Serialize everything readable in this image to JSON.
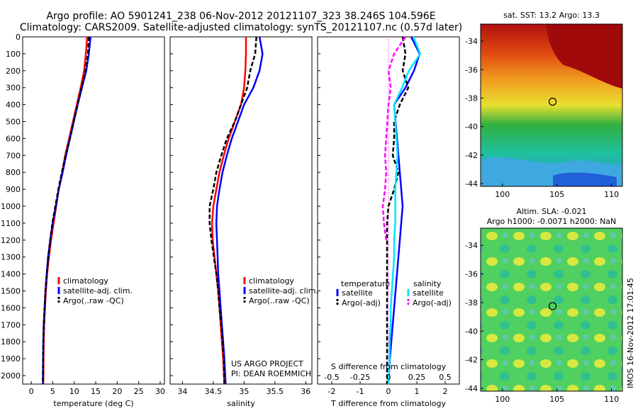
{
  "title_line1": "Argo profile: AO 5901241_238 06-Nov-2012 20121107_323 38.246S 104.596E",
  "title_line2": "Climatology: CARS2009. Satellite-adjusted climatology: synTS_20121107.nc (0.57d later)",
  "project_note_line1": "US ARGO PROJECT",
  "project_note_line2": "PI: DEAN ROEMMICH",
  "side_stamp": "IMOS 16-Nov-2012 17:01:45",
  "colors": {
    "climatology": "#ff0000",
    "satellite": "#0000ff",
    "argo": "#000000",
    "satellite_salinity": "#00e5ff",
    "argo_salinity": "#ff00ff"
  },
  "chart_data": [
    {
      "type": "line",
      "panel": "temperature",
      "xlabel": "temperature (deg C)",
      "ylabel": "",
      "xlim": [
        -2,
        31
      ],
      "ylim": [
        0,
        2050
      ],
      "y_reversed": true,
      "xticks": [
        0,
        5,
        10,
        15,
        20,
        25,
        30
      ],
      "yticks": [
        0,
        100,
        200,
        300,
        400,
        500,
        600,
        700,
        800,
        900,
        1000,
        1100,
        1200,
        1300,
        1400,
        1500,
        1600,
        1700,
        1800,
        1900,
        2000
      ],
      "legend": [
        "climatology",
        "satellite-adj. clim.",
        "Argo(..raw -QC)"
      ],
      "legend_position": "lower-right",
      "series": [
        {
          "name": "climatology",
          "style": "solid",
          "x": [
            13.0,
            12.7,
            12.3,
            11.5,
            10.6,
            9.7,
            8.8,
            7.9,
            7.2,
            6.4,
            5.8,
            5.2,
            4.6,
            4.1,
            3.7,
            3.4,
            3.2,
            3.0,
            2.9,
            2.85,
            2.8
          ],
          "y": [
            0,
            100,
            200,
            300,
            400,
            500,
            600,
            700,
            800,
            900,
            1000,
            1100,
            1200,
            1300,
            1400,
            1500,
            1600,
            1700,
            1800,
            1900,
            2050
          ]
        },
        {
          "name": "satellite-adj. clim.",
          "style": "solid",
          "x": [
            13.8,
            13.4,
            12.8,
            11.8,
            10.8,
            9.9,
            9.0,
            8.1,
            7.3,
            6.4,
            5.7,
            5.0,
            4.4,
            3.9,
            3.6,
            3.3,
            3.1,
            2.9,
            2.8,
            2.75,
            2.7
          ],
          "y": [
            0,
            100,
            200,
            300,
            400,
            500,
            600,
            700,
            800,
            900,
            1000,
            1100,
            1200,
            1300,
            1400,
            1500,
            1600,
            1700,
            1800,
            1900,
            2050
          ]
        },
        {
          "name": "Argo(..raw -QC)",
          "style": "dashed",
          "x": [
            13.4,
            13.2,
            12.6,
            11.7,
            10.8,
            9.9,
            9.0,
            8.0,
            7.1,
            6.3,
            5.6,
            4.9,
            4.4,
            4.0,
            3.6,
            3.3,
            3.1,
            2.9,
            2.8,
            2.75,
            2.7
          ],
          "y": [
            0,
            100,
            200,
            300,
            400,
            500,
            600,
            700,
            800,
            900,
            1000,
            1100,
            1200,
            1300,
            1400,
            1500,
            1600,
            1700,
            1800,
            1900,
            2050
          ]
        }
      ]
    },
    {
      "type": "line",
      "panel": "salinity",
      "xlabel": "salinity",
      "ylabel": "",
      "xlim": [
        33.8,
        36.1
      ],
      "ylim": [
        0,
        2050
      ],
      "y_reversed": true,
      "xticks": [
        34,
        34.5,
        35,
        35.5,
        36
      ],
      "legend": [
        "climatology",
        "satellite-adj. clim.",
        "Argo(..raw -QC)"
      ],
      "legend_position": "lower-right",
      "series": [
        {
          "name": "climatology",
          "style": "solid",
          "x": [
            35.03,
            35.03,
            35.02,
            35.0,
            34.95,
            34.85,
            34.75,
            34.67,
            34.6,
            34.55,
            34.5,
            34.48,
            34.49,
            34.52,
            34.55,
            34.58,
            34.6,
            34.62,
            34.64,
            34.66,
            34.68
          ],
          "y": [
            0,
            100,
            200,
            300,
            400,
            500,
            600,
            700,
            800,
            900,
            1000,
            1100,
            1200,
            1300,
            1400,
            1500,
            1600,
            1700,
            1800,
            1900,
            2050
          ]
        },
        {
          "name": "satellite-adj. clim.",
          "style": "solid",
          "x": [
            35.25,
            35.3,
            35.25,
            35.15,
            35.0,
            34.9,
            34.8,
            34.72,
            34.65,
            34.6,
            34.56,
            34.55,
            34.56,
            34.57,
            34.58,
            34.6,
            34.62,
            34.64,
            34.66,
            34.68,
            34.7
          ],
          "y": [
            0,
            100,
            200,
            300,
            400,
            500,
            600,
            700,
            800,
            900,
            1000,
            1100,
            1200,
            1300,
            1400,
            1500,
            1600,
            1700,
            1800,
            1900,
            2050
          ]
        },
        {
          "name": "Argo(..raw -QC)",
          "style": "dashed",
          "x": [
            35.2,
            35.18,
            35.1,
            35.05,
            34.95,
            34.85,
            34.72,
            34.63,
            34.55,
            34.5,
            34.44,
            34.44,
            34.47,
            34.51,
            34.55,
            34.58,
            34.6,
            34.63,
            34.65,
            34.67,
            34.68
          ],
          "y": [
            0,
            100,
            200,
            300,
            400,
            500,
            600,
            700,
            800,
            900,
            1000,
            1100,
            1200,
            1300,
            1400,
            1500,
            1600,
            1700,
            1800,
            1900,
            2050
          ]
        }
      ]
    },
    {
      "type": "line",
      "panel": "difference",
      "xlabel": "T difference from climatology",
      "x2label": "S difference from climatology",
      "ylabel": "",
      "xlim": [
        -2.5,
        2.5
      ],
      "x2lim": [
        -0.625,
        0.625
      ],
      "ylim": [
        0,
        2050
      ],
      "y_reversed": true,
      "xticks": [
        -2,
        -1,
        0,
        1,
        2
      ],
      "x2ticks": [
        -0.5,
        -0.25,
        0,
        0.25,
        0.5
      ],
      "x2ticklabels": [
        "-0.5",
        "-0.25",
        "0",
        "0.25",
        "0.5"
      ],
      "legend_headers": [
        "temperature",
        "salinity"
      ],
      "legend": [
        "satellite",
        "Argo(-adj)",
        "satellite",
        "Argo(-adj)"
      ],
      "legend_position": "lower",
      "series": [
        {
          "name": "satellite",
          "group": "temperature",
          "style": "solid",
          "x": [
            0.8,
            1.1,
            0.9,
            0.6,
            0.2,
            0.25,
            0.3,
            0.35,
            0.4,
            0.45,
            0.5,
            0.45,
            0.4,
            0.35,
            0.3,
            0.25,
            0.2,
            0.15,
            0.1,
            0.05,
            0.0
          ],
          "y": [
            0,
            100,
            200,
            300,
            400,
            500,
            600,
            700,
            800,
            900,
            1000,
            1100,
            1200,
            1300,
            1400,
            1500,
            1600,
            1700,
            1800,
            1900,
            2050
          ]
        },
        {
          "name": "Argo(-adj)",
          "group": "temperature",
          "style": "dashed",
          "x": [
            0.5,
            0.6,
            0.5,
            0.7,
            0.4,
            0.2,
            0.2,
            0.15,
            0.35,
            0.2,
            0.0,
            -0.05,
            -0.05,
            -0.05,
            -0.05,
            -0.05,
            -0.05,
            -0.05,
            -0.05,
            -0.05,
            -0.05
          ],
          "y": [
            0,
            100,
            200,
            300,
            400,
            500,
            600,
            700,
            800,
            900,
            1000,
            1100,
            1200,
            1300,
            1400,
            1500,
            1600,
            1700,
            1800,
            1900,
            2050
          ]
        },
        {
          "name": "satellite",
          "group": "salinity",
          "style": "solid",
          "x": [
            0.22,
            0.28,
            0.18,
            0.12,
            0.05,
            0.06,
            0.07,
            0.08,
            0.07,
            0.06,
            0.06,
            0.06,
            0.05,
            0.05,
            0.04,
            0.03,
            0.02,
            0.02,
            0.01,
            0.01,
            0.0
          ],
          "y": [
            0,
            100,
            200,
            300,
            400,
            500,
            600,
            700,
            800,
            900,
            1000,
            1100,
            1200,
            1300,
            1400,
            1500,
            1600,
            1700,
            1800,
            1900,
            2050
          ]
        },
        {
          "name": "Argo(-adj)",
          "group": "salinity",
          "style": "dashed",
          "x": [
            0.15,
            0.05,
            0.0,
            0.02,
            0.0,
            -0.01,
            -0.02,
            -0.03,
            -0.02,
            -0.03,
            -0.05,
            -0.04,
            -0.02
          ],
          "y": [
            0,
            100,
            200,
            300,
            400,
            500,
            600,
            700,
            800,
            900,
            1000,
            1100,
            1200
          ]
        }
      ]
    },
    {
      "type": "heatmap",
      "panel": "sst_map",
      "title": "sat. SST: 13.2  Argo: 13.3",
      "xlim": [
        98,
        111
      ],
      "ylim": [
        -44.2,
        -32.8
      ],
      "xticks": [
        100,
        105,
        110
      ],
      "yticks": [
        -44,
        -42,
        -40,
        -38,
        -36,
        -34
      ],
      "marker": {
        "lon": 104.6,
        "lat": -38.25
      }
    },
    {
      "type": "heatmap",
      "panel": "sla_map",
      "title_line1": "Altim. SLA: -0.021",
      "title_line2": "Argo h1000: -0.0071  h2000: NaN",
      "xlim": [
        98,
        111
      ],
      "ylim": [
        -44.2,
        -32.8
      ],
      "xticks": [
        100,
        105,
        110
      ],
      "yticks": [
        -44,
        -42,
        -40,
        -38,
        -36,
        -34
      ],
      "marker": {
        "lon": 104.6,
        "lat": -38.25
      }
    }
  ]
}
